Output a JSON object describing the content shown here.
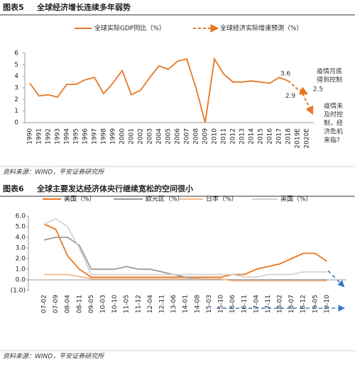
{
  "chart_data": [
    {
      "type": "line",
      "figure_label": "图表5",
      "title": "全球经济增长连续多年弱势",
      "categories": [
        "1990",
        "1991",
        "1992",
        "1993",
        "1994",
        "1995",
        "1996",
        "1997",
        "1998",
        "1999",
        "2000",
        "2001",
        "2002",
        "2003",
        "2004",
        "2005",
        "2006",
        "2007",
        "2008",
        "2009",
        "2010",
        "2011",
        "2012",
        "2013",
        "2014",
        "2015",
        "2016",
        "2017",
        "2018",
        "2019E",
        "2020E"
      ],
      "series": [
        {
          "name": "全球实际GDP同比（%）",
          "color": "#e87722",
          "dashed": false,
          "values": [
            3.4,
            2.3,
            2.4,
            2.2,
            3.3,
            3.3,
            3.7,
            3.9,
            2.5,
            3.4,
            4.5,
            2.4,
            2.8,
            3.9,
            4.9,
            4.6,
            5.3,
            5.5,
            3.0,
            0.0,
            5.5,
            4.2,
            3.5,
            3.5,
            3.6,
            3.5,
            3.4,
            3.9,
            3.6,
            null,
            null
          ]
        },
        {
          "name": "全球经济实际增速预测（%）",
          "color": "#e87722",
          "dashed": true,
          "values": [
            null,
            null,
            null,
            null,
            null,
            null,
            null,
            null,
            null,
            null,
            null,
            null,
            null,
            null,
            null,
            null,
            null,
            null,
            null,
            null,
            null,
            null,
            null,
            null,
            null,
            null,
            null,
            null,
            3.6,
            2.9,
            2.5
          ]
        }
      ],
      "annotations": [
        [
          "疫情月底",
          "得到控制"
        ],
        [
          "疫情未",
          "及时控",
          "制，经",
          "济危机",
          "来临?"
        ]
      ],
      "ylim": [
        0,
        6
      ],
      "yticks": [
        0,
        1,
        2,
        3,
        4,
        5,
        6
      ],
      "grid": false,
      "source": "资料来源：WIND，平安证券研究所"
    },
    {
      "type": "line",
      "figure_label": "图表6",
      "title": "全球主要发达经济体央行继续宽松的空间很小",
      "categories": [
        "07-02",
        "07-09",
        "08-04",
        "08-11",
        "09-05",
        "10-03",
        "10-10",
        "11-05",
        "11-12",
        "12-04",
        "12-11",
        "13-06",
        "14-01",
        "14-08",
        "15-03",
        "15-10",
        "16-06",
        "16-11",
        "17-04",
        "17-11",
        "18-02",
        "18-07",
        "18-12",
        "19-05",
        "19-10"
      ],
      "series": [
        {
          "name": "美国（%）",
          "color": "#e87722",
          "dashed": false,
          "values": [
            5.25,
            4.75,
            2.25,
            1.0,
            0.25,
            0.25,
            0.25,
            0.25,
            0.25,
            0.25,
            0.25,
            0.25,
            0.25,
            0.25,
            0.25,
            0.25,
            0.5,
            0.5,
            1.0,
            1.25,
            1.5,
            2.0,
            2.5,
            2.5,
            1.75
          ]
        },
        {
          "name": "欧元区（%）",
          "color": "#9a9a9a",
          "dashed": false,
          "values": [
            3.75,
            4.0,
            4.0,
            3.25,
            1.0,
            1.0,
            1.0,
            1.25,
            1.0,
            1.0,
            0.75,
            0.5,
            0.25,
            0.15,
            0.05,
            0.05,
            0,
            0,
            0,
            0,
            0,
            0,
            0,
            0,
            0
          ]
        },
        {
          "name": "日本（%）",
          "color": "#f5b88a",
          "dashed": false,
          "values": [
            0.5,
            0.5,
            0.5,
            0.3,
            0.1,
            0.1,
            0.1,
            0.1,
            0.1,
            0.1,
            0.1,
            0.1,
            0.1,
            0.1,
            0.1,
            0.1,
            -0.1,
            -0.1,
            -0.1,
            -0.1,
            -0.1,
            -0.1,
            -0.1,
            -0.1,
            -0.1
          ]
        },
        {
          "name": "英国（%）",
          "color": "#d3d3d3",
          "dashed": false,
          "values": [
            5.25,
            5.75,
            5.0,
            3.0,
            0.5,
            0.5,
            0.5,
            0.5,
            0.5,
            0.5,
            0.5,
            0.5,
            0.5,
            0.5,
            0.5,
            0.5,
            0.5,
            0.25,
            0.25,
            0.5,
            0.5,
            0.5,
            0.75,
            0.75,
            0.75
          ]
        }
      ],
      "ylim": [
        -1,
        6
      ],
      "yticks": [
        {
          "value": -1,
          "label": "(1.0)"
        },
        {
          "value": 0,
          "label": "0.0"
        },
        {
          "value": 1,
          "label": "1.0"
        },
        {
          "value": 2,
          "label": "2.0"
        },
        {
          "value": 3,
          "label": "3.0"
        },
        {
          "value": 4,
          "label": "4.0"
        },
        {
          "value": 5,
          "label": "5.0"
        },
        {
          "value": 6,
          "label": "6.0"
        }
      ],
      "grid": false,
      "source": "资料来源：WIND，平安证券研究所"
    }
  ]
}
